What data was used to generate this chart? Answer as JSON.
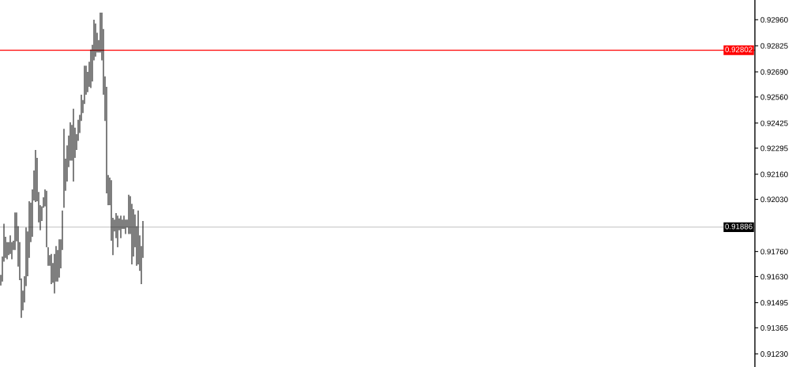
{
  "chart_data": {
    "type": "bar",
    "color": "#000000",
    "categories": [
      null,
      null,
      null,
      null,
      null,
      null,
      null,
      null,
      null,
      null,
      null,
      null,
      null,
      null,
      null,
      null,
      null,
      null,
      null,
      null,
      null,
      null,
      null,
      null,
      null,
      null,
      null,
      null,
      null,
      null,
      null,
      null,
      null,
      null,
      null,
      null,
      null,
      null,
      null,
      null,
      null,
      null,
      null,
      null,
      null,
      null,
      null,
      null,
      null,
      null,
      null,
      null,
      null,
      null,
      null,
      null,
      null,
      null,
      null,
      null,
      null,
      null,
      null,
      null,
      null,
      null,
      null,
      null,
      null,
      null,
      null,
      null,
      null,
      null,
      null,
      null,
      null,
      null,
      null,
      null,
      null,
      null,
      null,
      null,
      null,
      null,
      null,
      null,
      null,
      null,
      null,
      null,
      null,
      null,
      null,
      null,
      null,
      null,
      null,
      null,
      null,
      null,
      null,
      null,
      null,
      null,
      null,
      null,
      null,
      null,
      null,
      null,
      null,
      null,
      null,
      null,
      null,
      null,
      null,
      null,
      null,
      null,
      null,
      null,
      null,
      null,
      null,
      null,
      null,
      null,
      null,
      null,
      null,
      null,
      null,
      null,
      null,
      null,
      null,
      null,
      null,
      null,
      null,
      null,
      null,
      null,
      null,
      null,
      null,
      null,
      null,
      null,
      null,
      null,
      null,
      null,
      null,
      null,
      null,
      null,
      null,
      null,
      null,
      null,
      null,
      null,
      null,
      null,
      null,
      null,
      null,
      null,
      null,
      null,
      null,
      null,
      null,
      null,
      null,
      null,
      null,
      null,
      null,
      null,
      null,
      null,
      null,
      null,
      null,
      null,
      null,
      null,
      null,
      null,
      null,
      null,
      null,
      null,
      null,
      null,
      null,
      null,
      null,
      null,
      null,
      null,
      null,
      null,
      null,
      null,
      null,
      null,
      null,
      null,
      null,
      null,
      null,
      null,
      null,
      null,
      null,
      null,
      null,
      null,
      null,
      null,
      null,
      null,
      null,
      null,
      null,
      null,
      null,
      null,
      null,
      null,
      null,
      null,
      null,
      null,
      null,
      null,
      null,
      null,
      null,
      null,
      null,
      null,
      null,
      null,
      null,
      null,
      null,
      null,
      null,
      null,
      null,
      null,
      null,
      null,
      null,
      null,
      null,
      null,
      null,
      null,
      null,
      null,
      null,
      null,
      null,
      null,
      null,
      null,
      null,
      null,
      null,
      null,
      null,
      null,
      null,
      null,
      null,
      null,
      null,
      null,
      null,
      null,
      null,
      null,
      null,
      null,
      null,
      null,
      null,
      null,
      null,
      null,
      null,
      null,
      null,
      null,
      null,
      null,
      null,
      null,
      null,
      null,
      null,
      null,
      null,
      null,
      null,
      null,
      null,
      null,
      null,
      null,
      null,
      null,
      null,
      null,
      null,
      null,
      null,
      null,
      null,
      null,
      null,
      null,
      null,
      null,
      null,
      null,
      null,
      null,
      null,
      null,
      null,
      null,
      null,
      null,
      null,
      null,
      null,
      null,
      null,
      null,
      null,
      null,
      null,
      null,
      null,
      null,
      null,
      null,
      null,
      null,
      null,
      null,
      null,
      null,
      null,
      null,
      null,
      null,
      null,
      null,
      null,
      null,
      null,
      null,
      null,
      null,
      null,
      null,
      null,
      null,
      null,
      null,
      null,
      null,
      null,
      null,
      null,
      null,
      null,
      null,
      null,
      null,
      null,
      null,
      null,
      null,
      null,
      null,
      null,
      null,
      null,
      null,
      null,
      null,
      null,
      null,
      null,
      null,
      null,
      null,
      null,
      null,
      null,
      null,
      null,
      null,
      null,
      null,
      null,
      null,
      null,
      null,
      null,
      null,
      null,
      null,
      null,
      null,
      null,
      null,
      null,
      null,
      null,
      null,
      null,
      null,
      null,
      null,
      null,
      null,
      null,
      null,
      null,
      null,
      null,
      null,
      null,
      null,
      null,
      null,
      null,
      null,
      null,
      null,
      null,
      null,
      null,
      null,
      null,
      null,
      null,
      null,
      null,
      null,
      null,
      null,
      null,
      null,
      null,
      null,
      null,
      null,
      null,
      null,
      null,
      null,
      null,
      null,
      null,
      null
    ],
    "base": [
      0.91584,
      0.91604,
      0.91707,
      0.91727,
      0.9172,
      0.91741,
      0.91747,
      0.9172,
      0.91768,
      0.91768,
      0.91813,
      0.91682,
      0.91611,
      0.91416,
      0.91455,
      0.91496,
      0.91581,
      0.91632,
      0.91727,
      0.91809,
      0.91836,
      0.92024,
      0.92016,
      0.9202,
      0.91911,
      0.9187,
      0.91918,
      0.91986,
      0.91993,
      0.91782,
      0.91686,
      0.91686,
      0.91591,
      0.91598,
      0.91543,
      0.91604,
      0.91604,
      0.91625,
      0.91673,
      0.91768,
      0.91986,
      0.92074,
      0.92122,
      0.92197,
      0.92231,
      0.92231,
      0.92122,
      0.92245,
      0.92286,
      0.92333,
      0.92374,
      0.92436,
      0.92477,
      0.92524,
      0.92572,
      0.92585,
      0.92613,
      0.92606,
      0.9264,
      0.92749,
      0.92769,
      0.9279,
      0.9279,
      0.9279,
      0.92749,
      0.92572,
      0.92436,
      0.92061,
      0.92,
      0.92,
      0.91816,
      0.91741,
      0.91864,
      0.91829,
      0.91782,
      0.9187,
      0.91829,
      0.91877,
      0.91877,
      0.9185,
      0.91884,
      0.9185,
      0.9185,
      0.91693,
      0.91734,
      0.91782,
      0.91686,
      0.91693,
      0.91659,
      0.91591,
      0.91727,
      null,
      null,
      null,
      null,
      null,
      null,
      null,
      null,
      null,
      null,
      null,
      null,
      null,
      null,
      null,
      null,
      null,
      null,
      null,
      null,
      null,
      null,
      null,
      null,
      null,
      null,
      null,
      null,
      null,
      null,
      null,
      null,
      null,
      null,
      null,
      null,
      null,
      null,
      null,
      null,
      null,
      null,
      null,
      null,
      null,
      null,
      null,
      null,
      null,
      null,
      null,
      null,
      null,
      null,
      null,
      null,
      null,
      null,
      null,
      null,
      null,
      null,
      null,
      null,
      null,
      null,
      null,
      null,
      null,
      null,
      null,
      null,
      null,
      null,
      null,
      null,
      null,
      null,
      null,
      null,
      null,
      null,
      null,
      null,
      null,
      null,
      null,
      null,
      null,
      null,
      null,
      null,
      null,
      null,
      null,
      null,
      null,
      null,
      null,
      null,
      null,
      null,
      null,
      null,
      null,
      null,
      null,
      null,
      null,
      null,
      null,
      null,
      null,
      null,
      null,
      null,
      null,
      null,
      null,
      null,
      null,
      null,
      null,
      null,
      null,
      null,
      null,
      null,
      null,
      null,
      null,
      null,
      null,
      null,
      null,
      null,
      null,
      null,
      null,
      null,
      null,
      null,
      null,
      null,
      null,
      null,
      null,
      null,
      null,
      null,
      null,
      null,
      null,
      null,
      null,
      null,
      null,
      null,
      null,
      null,
      null,
      null,
      null,
      null,
      null,
      null,
      null,
      null,
      null,
      null,
      null,
      null,
      null,
      null,
      null,
      null,
      null,
      null,
      null,
      null,
      null,
      null,
      null,
      null,
      null,
      null,
      null,
      null,
      null,
      null,
      null,
      null,
      null,
      null,
      null,
      null,
      null,
      null,
      null,
      null,
      null,
      null,
      null,
      null,
      null,
      null,
      null,
      null,
      null,
      null,
      null,
      null,
      null,
      null,
      null,
      null,
      null,
      null,
      null,
      null,
      null,
      null,
      null,
      null,
      null,
      null,
      null,
      null,
      null,
      null,
      null,
      null,
      null,
      null,
      null,
      null,
      null,
      null,
      null,
      null,
      null,
      null,
      null,
      null,
      null,
      null,
      null,
      null,
      null,
      null,
      null,
      null,
      null,
      null,
      null,
      null,
      null,
      null,
      null,
      null,
      null,
      null,
      null,
      null,
      null,
      null,
      null,
      null,
      null,
      null,
      null,
      null,
      null,
      null,
      null,
      null,
      null,
      null,
      null,
      null,
      null,
      null,
      null,
      null,
      null,
      null,
      null,
      null,
      null,
      null,
      null,
      null,
      null,
      null,
      null,
      null,
      null,
      null,
      null,
      null,
      null,
      null,
      null,
      null,
      null,
      null,
      null,
      null,
      null,
      null,
      null,
      null,
      null,
      null,
      null,
      null,
      null,
      null,
      null,
      null,
      null,
      null,
      null,
      null,
      null,
      null,
      null,
      null,
      null,
      null,
      null,
      null,
      null,
      null,
      null,
      null,
      null,
      null,
      null,
      null,
      null,
      null,
      null,
      null,
      null,
      null,
      null,
      null,
      null,
      null,
      null,
      null,
      null,
      null,
      null,
      null,
      null,
      null,
      null,
      null,
      null,
      null,
      null,
      null,
      null,
      null,
      null,
      null,
      null,
      null,
      null,
      null,
      null,
      null,
      null,
      null,
      null,
      null,
      null,
      null,
      null,
      null,
      null,
      null,
      null,
      null,
      null
    ],
    "values": [
      0.00055,
      0.0013,
      0.00197,
      0.00109,
      0.00089,
      0.00068,
      0.00096,
      0.00089,
      0.00048,
      0.00194,
      0.00149,
      0.00209,
      0.00198,
      0.00205,
      0.00102,
      0.00136,
      0.00303,
      0.00232,
      0.00293,
      0.00204,
      0.00245,
      0.00155,
      0.0027,
      0.00225,
      0.00157,
      0.0013,
      0.00075,
      0.00054,
      0.00088,
      0.00292,
      0.00096,
      0.00055,
      0.00156,
      0.00102,
      0.00204,
      0.00184,
      0.00164,
      0.00198,
      0.0015,
      0.00204,
      0.00409,
      0.00167,
      0.00187,
      0.00163,
      0.00198,
      0.00184,
      0.00377,
      0.00156,
      0.00081,
      0.00109,
      0.00093,
      0.00136,
      0.00067,
      0.00198,
      0.0015,
      0.00105,
      0.00129,
      0.002,
      0.0019,
      0.00211,
      0.00171,
      0.00102,
      0.00065,
      0.00207,
      0.00248,
      0.0034,
      0.00231,
      0.00552,
      0.00156,
      0.00143,
      0.00313,
      0.00193,
      0.00061,
      0.0013,
      0.00163,
      0.00061,
      0.00116,
      0.00048,
      0.00068,
      0.00075,
      0.00041,
      0.00204,
      0.00197,
      0.00314,
      0.00245,
      0.0017,
      0.00205,
      0.00279,
      0.00184,
      0.00197,
      0.00191,
      null,
      null,
      null,
      null,
      null,
      null,
      null,
      null,
      null,
      null,
      null,
      null,
      null,
      null,
      null,
      null,
      null,
      null,
      null,
      null,
      null,
      null,
      null,
      null,
      null,
      null,
      null,
      null,
      null,
      null,
      null,
      null,
      null,
      null,
      null,
      null,
      null,
      null,
      null,
      null,
      null,
      null,
      null,
      null,
      null,
      null,
      null,
      null,
      null,
      null,
      null,
      null,
      null,
      null,
      null,
      null,
      null,
      null,
      null,
      null,
      null,
      null,
      null,
      null,
      null,
      null,
      null,
      null,
      null,
      null,
      null,
      null,
      null,
      null,
      null,
      null,
      null,
      null,
      null,
      null,
      null,
      null,
      null,
      null,
      null,
      null,
      null,
      null,
      null,
      null,
      null,
      null,
      null,
      null,
      null,
      null,
      null,
      null,
      null,
      null,
      null,
      null,
      null,
      null,
      null,
      null,
      null,
      null,
      null,
      null,
      null,
      null,
      null,
      null,
      null,
      null,
      null,
      null,
      null,
      null,
      null,
      null,
      null,
      null,
      null,
      null,
      null,
      null,
      null,
      null,
      null,
      null,
      null,
      null,
      null,
      null,
      null,
      null,
      null,
      null,
      null,
      null,
      null,
      null,
      null,
      null,
      null,
      null,
      null,
      null,
      null,
      null,
      null,
      null,
      null,
      null,
      null,
      null,
      null,
      null,
      null,
      null,
      null,
      null,
      null,
      null,
      null,
      null,
      null,
      null,
      null,
      null,
      null,
      null,
      null,
      null,
      null,
      null,
      null,
      null,
      null,
      null,
      null,
      null,
      null,
      null,
      null,
      null,
      null,
      null,
      null,
      null,
      null,
      null,
      null,
      null,
      null,
      null,
      null,
      null,
      null,
      null,
      null,
      null,
      null,
      null,
      null,
      null,
      null,
      null,
      null,
      null,
      null,
      null,
      null,
      null,
      null,
      null,
      null,
      null,
      null,
      null,
      null,
      null,
      null,
      null,
      null,
      null,
      null,
      null,
      null,
      null,
      null,
      null,
      null,
      null,
      null,
      null,
      null,
      null,
      null,
      null,
      null,
      null,
      null,
      null,
      null,
      null,
      null,
      null,
      null,
      null,
      null,
      null,
      null,
      null,
      null,
      null,
      null,
      null,
      null,
      null,
      null,
      null,
      null,
      null,
      null,
      null,
      null,
      null,
      null,
      null,
      null,
      null,
      null,
      null,
      null,
      null,
      null,
      null,
      null,
      null,
      null,
      null,
      null,
      null,
      null,
      null,
      null,
      null,
      null,
      null,
      null,
      null,
      null,
      null,
      null,
      null,
      null,
      null,
      null,
      null,
      null,
      null,
      null,
      null,
      null,
      null,
      null,
      null,
      null,
      null,
      null,
      null,
      null,
      null,
      null,
      null,
      null,
      null,
      null,
      null,
      null,
      null,
      null,
      null,
      null,
      null,
      null,
      null,
      null,
      null,
      null,
      null,
      null,
      null,
      null,
      null,
      null,
      null,
      null,
      null,
      null,
      null,
      null,
      null,
      null,
      null,
      null,
      null,
      null,
      null,
      null,
      null,
      null,
      null,
      null,
      null,
      null,
      null,
      null,
      null,
      null,
      null,
      null,
      null,
      null,
      null,
      null,
      null,
      null,
      null,
      null,
      null,
      null,
      null,
      null,
      null,
      null,
      null,
      null,
      null,
      null,
      null,
      null,
      null,
      null
    ],
    "ylim": [
      0.91162,
      0.93062
    ],
    "yticks": [
      {
        "value": 0.9296,
        "label": "0.92960"
      },
      0.92825,
      {
        "value": 0.9269,
        "label": "0.92690"
      },
      {
        "value": 0.9256,
        "label": "0.92560"
      },
      0.92425,
      0.92295,
      {
        "value": 0.9216,
        "label": "0.92160"
      },
      {
        "value": 0.9203,
        "label": "0.92030"
      },
      {
        "value": 0.9176,
        "label": "0.91760"
      },
      {
        "value": 0.9163,
        "label": "0.91630"
      },
      0.91495,
      0.91365,
      {
        "value": 0.9123,
        "label": "0.91230"
      }
    ],
    "ref_lines": [
      {
        "axis": "y",
        "value": 0.92802,
        "label": "0.92802",
        "color": "#ff0000"
      },
      {
        "axis": "y",
        "value": 0.91886,
        "label": "0.91886",
        "color": "#c0c0c0"
      }
    ],
    "tick_labels": "y"
  }
}
